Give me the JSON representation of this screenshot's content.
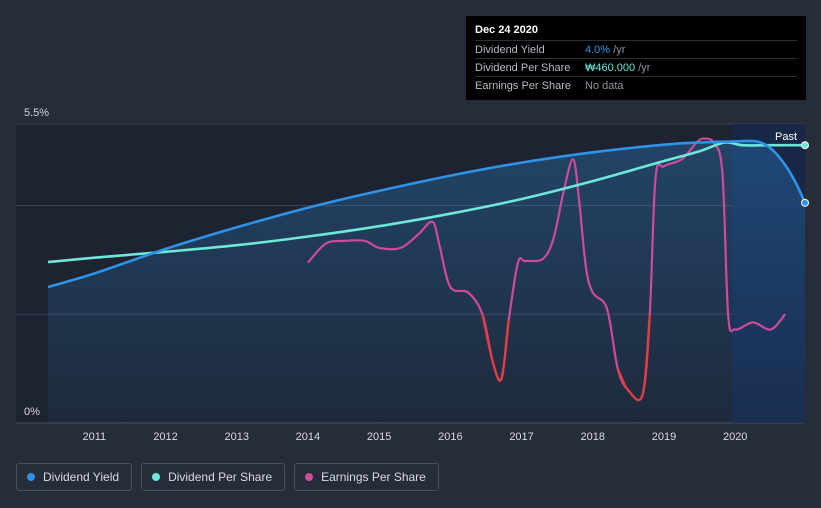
{
  "tooltip": {
    "date": "Dec 24 2020",
    "rows": [
      {
        "label": "Dividend Yield",
        "value": "4.0%",
        "unit": " /yr",
        "color": "#2e93e6"
      },
      {
        "label": "Dividend Per Share",
        "value": "₩460.000",
        "unit": " /yr",
        "color": "#6ee6d9"
      },
      {
        "label": "Earnings Per Share",
        "value": "No data",
        "unit": "",
        "color": "#8f949c"
      }
    ]
  },
  "legend": {
    "items": [
      {
        "label": "Dividend Yield",
        "color": "#2e93e6"
      },
      {
        "label": "Dividend Per Share",
        "color": "#6ee6d9"
      },
      {
        "label": "Earnings Per Share",
        "color": "#d04a9c"
      }
    ]
  },
  "chart_data": {
    "type": "line",
    "title": "",
    "xlabel": "",
    "ylabel": "",
    "xlim": [
      2010.35,
      2020.98
    ],
    "ylim": [
      0,
      5.5
    ],
    "y_tick_labels": [
      "0%",
      "5.5%"
    ],
    "x_ticks": [
      2011,
      2012,
      2013,
      2014,
      2015,
      2016,
      2017,
      2018,
      2019,
      2020
    ],
    "past_label": "Past",
    "past_start": 2019.96,
    "series": [
      {
        "name": "Dividend Yield",
        "color": "#2e93e6",
        "x": [
          2010.35,
          2011,
          2012,
          2013,
          2014,
          2015,
          2016,
          2017,
          2018,
          2019,
          2019.5,
          2020.0,
          2020.3,
          2020.5,
          2020.7,
          2020.85,
          2020.98
        ],
        "y": [
          2.5,
          2.75,
          3.2,
          3.6,
          3.96,
          4.27,
          4.55,
          4.79,
          4.98,
          5.12,
          5.16,
          5.18,
          5.18,
          5.05,
          4.75,
          4.42,
          4.05
        ]
      },
      {
        "name": "Dividend Per Share",
        "color": "#6ee6d9",
        "x": [
          2010.35,
          2011,
          2012,
          2013,
          2014,
          2015,
          2016,
          2017,
          2018,
          2019,
          2019.5,
          2019.85,
          2020.1,
          2020.5,
          2020.98
        ],
        "y": [
          2.96,
          3.04,
          3.15,
          3.27,
          3.43,
          3.62,
          3.85,
          4.12,
          4.45,
          4.82,
          5.0,
          5.16,
          5.11,
          5.11,
          5.11
        ]
      },
      {
        "name": "Earnings Per Share",
        "color": "#d04a9c",
        "negative_color": "#e63c3c",
        "x": [
          2014.0,
          2014.25,
          2014.5,
          2014.8,
          2015.0,
          2015.3,
          2015.55,
          2015.75,
          2015.85,
          2016.0,
          2016.25,
          2016.45,
          2016.6,
          2016.72,
          2016.82,
          2016.95,
          2017.05,
          2017.3,
          2017.45,
          2017.58,
          2017.72,
          2017.8,
          2017.9,
          2018.0,
          2018.2,
          2018.35,
          2018.5,
          2018.7,
          2018.8,
          2018.88,
          2019.0,
          2019.25,
          2019.45,
          2019.55,
          2019.7,
          2019.82,
          2019.9,
          2020.0,
          2020.25,
          2020.5,
          2020.7
        ],
        "y": [
          2.95,
          3.3,
          3.35,
          3.35,
          3.22,
          3.22,
          3.47,
          3.7,
          3.25,
          2.5,
          2.4,
          2.0,
          1.1,
          0.82,
          1.9,
          2.95,
          2.98,
          3.02,
          3.4,
          4.2,
          4.85,
          4.2,
          2.9,
          2.4,
          2.1,
          1.0,
          0.6,
          0.52,
          2.0,
          4.5,
          4.72,
          4.85,
          5.15,
          5.23,
          5.15,
          4.6,
          2.0,
          1.72,
          1.85,
          1.72,
          2.0
        ]
      }
    ]
  }
}
